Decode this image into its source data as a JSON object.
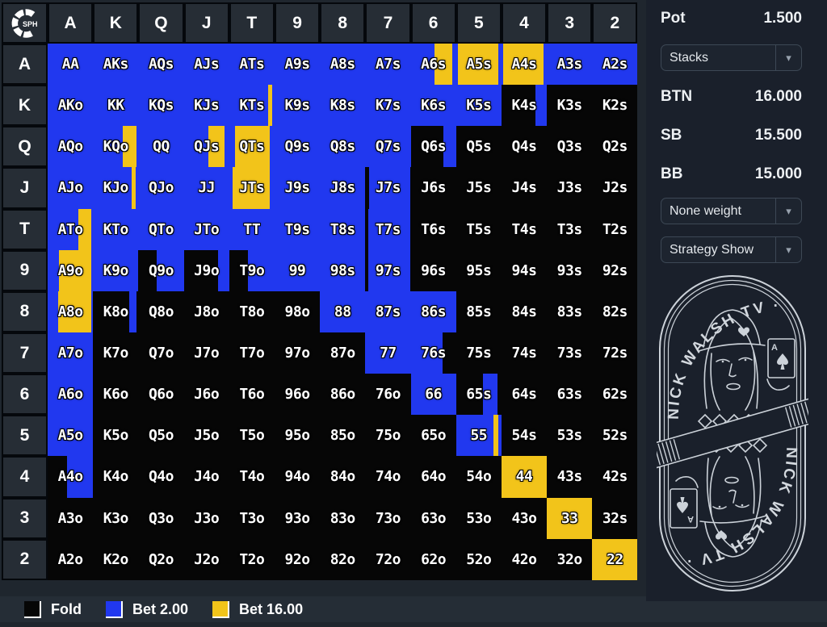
{
  "colors": {
    "B": "#2138ef",
    "Y": "#f2c41a",
    "K": "#060606"
  },
  "grid": {
    "corner_logo_text": "SPH",
    "col_headers": [
      "A",
      "K",
      "Q",
      "J",
      "T",
      "9",
      "8",
      "7",
      "6",
      "5",
      "4",
      "3",
      "2"
    ],
    "row_headers": [
      "A",
      "K",
      "Q",
      "J",
      "T",
      "9",
      "8",
      "7",
      "6",
      "5",
      "4",
      "3",
      "2"
    ],
    "rows": [
      [
        [
          "AA",
          "B"
        ],
        [
          "AKs",
          "B"
        ],
        [
          "AQs",
          "B"
        ],
        [
          "AJs",
          "B"
        ],
        [
          "ATs",
          "B"
        ],
        [
          "A9s",
          "B"
        ],
        [
          "A8s",
          "B"
        ],
        [
          "A7s",
          "B"
        ],
        [
          "A6s",
          [
            [
              "B",
              0.52
            ],
            [
              "Y",
              0.4
            ],
            [
              "B",
              0.08
            ]
          ]
        ],
        [
          "A5s",
          [
            [
              "B",
              0.05
            ],
            [
              "Y",
              0.89
            ],
            [
              "B",
              0.06
            ]
          ]
        ],
        [
          "A4s",
          [
            [
              "B",
              0.03
            ],
            [
              "Y",
              0.89
            ],
            [
              "B",
              0.08
            ]
          ]
        ],
        [
          "A3s",
          "B"
        ],
        [
          "A2s",
          "B"
        ]
      ],
      [
        [
          "AKo",
          "B"
        ],
        [
          "KK",
          "B"
        ],
        [
          "KQs",
          "B"
        ],
        [
          "KJs",
          "B"
        ],
        [
          "KTs",
          [
            [
              "B",
              0.86
            ],
            [
              "Y",
              0.09
            ],
            [
              "B",
              0.05
            ]
          ]
        ],
        [
          "K9s",
          "B"
        ],
        [
          "K8s",
          "B"
        ],
        [
          "K7s",
          "B"
        ],
        [
          "K6s",
          "B"
        ],
        [
          "K5s",
          "B"
        ],
        [
          "K4s",
          [
            [
              "K",
              0.75
            ],
            [
              "B",
              0.25
            ]
          ]
        ],
        [
          "K3s",
          "K"
        ],
        [
          "K2s",
          "K"
        ]
      ],
      [
        [
          "AQo",
          "B"
        ],
        [
          "KQo",
          [
            [
              "B",
              0.65
            ],
            [
              "Y",
              0.3
            ],
            [
              "B",
              0.05
            ]
          ]
        ],
        [
          "QQ",
          "B"
        ],
        [
          "QJs",
          [
            [
              "B",
              0.54
            ],
            [
              "Y",
              0.35
            ],
            [
              "B",
              0.11
            ]
          ]
        ],
        [
          "QTs",
          [
            [
              "B",
              0.13
            ],
            [
              "Y",
              0.77
            ],
            [
              "B",
              0.1
            ]
          ]
        ],
        [
          "Q9s",
          "B"
        ],
        [
          "Q8s",
          "B"
        ],
        [
          "Q7s",
          "B"
        ],
        [
          "Q6s",
          [
            [
              "K",
              0.72
            ],
            [
              "B",
              0.28
            ]
          ]
        ],
        [
          "Q5s",
          "K"
        ],
        [
          "Q4s",
          "K"
        ],
        [
          "Q3s",
          "K"
        ],
        [
          "Q2s",
          "K"
        ]
      ],
      [
        [
          "AJo",
          "B"
        ],
        [
          "KJo",
          [
            [
              "B",
              0.85
            ],
            [
              "Y",
              0.09
            ],
            [
              "B",
              0.06
            ]
          ]
        ],
        [
          "QJo",
          "B"
        ],
        [
          "JJ",
          "B"
        ],
        [
          "JTs",
          [
            [
              "B",
              0.08
            ],
            [
              "Y",
              0.82
            ],
            [
              "B",
              0.1
            ]
          ]
        ],
        [
          "J9s",
          "B"
        ],
        [
          "J8s",
          "B"
        ],
        [
          "J7s",
          [
            [
              "K",
              0.09
            ],
            [
              "B",
              0.91
            ]
          ]
        ],
        [
          "J6s",
          "K"
        ],
        [
          "J5s",
          "K"
        ],
        [
          "J4s",
          "K"
        ],
        [
          "J3s",
          "K"
        ],
        [
          "J2s",
          "K"
        ]
      ],
      [
        [
          "ATo",
          [
            [
              "B",
              0.67
            ],
            [
              "Y",
              0.29
            ],
            [
              "B",
              0.04
            ]
          ]
        ],
        [
          "KTo",
          "B"
        ],
        [
          "QTo",
          "B"
        ],
        [
          "JTo",
          "B"
        ],
        [
          "TT",
          "B"
        ],
        [
          "T9s",
          "B"
        ],
        [
          "T8s",
          "B"
        ],
        [
          "T7s",
          [
            [
              "K",
              0.06
            ],
            [
              "B",
              0.94
            ]
          ]
        ],
        [
          "T6s",
          "K"
        ],
        [
          "T5s",
          "K"
        ],
        [
          "T4s",
          "K"
        ],
        [
          "T3s",
          "K"
        ],
        [
          "T2s",
          "K"
        ]
      ],
      [
        [
          "A9o",
          [
            [
              "B",
              0.25
            ],
            [
              "Y",
              0.71
            ],
            [
              "B",
              0.04
            ]
          ]
        ],
        [
          "K9o",
          "B"
        ],
        [
          "Q9o",
          [
            [
              "K",
              0.4
            ],
            [
              "B",
              0.6
            ]
          ]
        ],
        [
          "J9o",
          [
            [
              "K",
              0.75
            ],
            [
              "B",
              0.25
            ]
          ]
        ],
        [
          "T9o",
          [
            [
              "K",
              0.41
            ],
            [
              "B",
              0.59
            ]
          ]
        ],
        [
          "99",
          "B"
        ],
        [
          "98s",
          "B"
        ],
        [
          "97s",
          [
            [
              "K",
              0.06
            ],
            [
              "B",
              0.94
            ]
          ]
        ],
        [
          "96s",
          "K"
        ],
        [
          "95s",
          "K"
        ],
        [
          "94s",
          "K"
        ],
        [
          "93s",
          "K"
        ],
        [
          "92s",
          "K"
        ]
      ],
      [
        [
          "A8o",
          [
            [
              "B",
              0.24
            ],
            [
              "Y",
              0.72
            ],
            [
              "B",
              0.04
            ]
          ]
        ],
        [
          "K8o",
          [
            [
              "K",
              0.8
            ],
            [
              "B",
              0.15
            ],
            [
              "K",
              0.05
            ]
          ]
        ],
        [
          "Q8o",
          "K"
        ],
        [
          "J8o",
          "K"
        ],
        [
          "T8o",
          "K"
        ],
        [
          "98o",
          "K"
        ],
        [
          "88",
          "B"
        ],
        [
          "87s",
          "B"
        ],
        [
          "86s",
          "B"
        ],
        [
          "85s",
          "K"
        ],
        [
          "84s",
          "K"
        ],
        [
          "83s",
          "K"
        ],
        [
          "82s",
          "K"
        ]
      ],
      [
        [
          "A7o",
          "B"
        ],
        [
          "K7o",
          "K"
        ],
        [
          "Q7o",
          "K"
        ],
        [
          "J7o",
          "K"
        ],
        [
          "T7o",
          "K"
        ],
        [
          "97o",
          "K"
        ],
        [
          "87o",
          "K"
        ],
        [
          "77",
          "B"
        ],
        [
          "76s",
          [
            [
              "B",
              0.7
            ],
            [
              "K",
              0.3
            ]
          ]
        ],
        [
          "75s",
          "K"
        ],
        [
          "74s",
          "K"
        ],
        [
          "73s",
          "K"
        ],
        [
          "72s",
          "K"
        ]
      ],
      [
        [
          "A6o",
          "B"
        ],
        [
          "K6o",
          "K"
        ],
        [
          "Q6o",
          "K"
        ],
        [
          "J6o",
          "K"
        ],
        [
          "T6o",
          "K"
        ],
        [
          "96o",
          "K"
        ],
        [
          "86o",
          "K"
        ],
        [
          "76o",
          "K"
        ],
        [
          "66",
          "B"
        ],
        [
          "65s",
          [
            [
              "K",
              0.6
            ],
            [
              "B",
              0.32
            ],
            [
              "K",
              0.08
            ]
          ]
        ],
        [
          "64s",
          "K"
        ],
        [
          "63s",
          "K"
        ],
        [
          "62s",
          "K"
        ]
      ],
      [
        [
          "A5o",
          "B"
        ],
        [
          "K5o",
          "K"
        ],
        [
          "Q5o",
          "K"
        ],
        [
          "J5o",
          "K"
        ],
        [
          "T5o",
          "K"
        ],
        [
          "95o",
          "K"
        ],
        [
          "85o",
          "K"
        ],
        [
          "75o",
          "K"
        ],
        [
          "65o",
          "K"
        ],
        [
          "55",
          [
            [
              "B",
              0.82
            ],
            [
              "Y",
              0.12
            ],
            [
              "B",
              0.06
            ]
          ]
        ],
        [
          "54s",
          "K"
        ],
        [
          "53s",
          "K"
        ],
        [
          "52s",
          "K"
        ]
      ],
      [
        [
          "A4o",
          [
            [
              "K",
              0.42
            ],
            [
              "B",
              0.58
            ]
          ]
        ],
        [
          "K4o",
          "K"
        ],
        [
          "Q4o",
          "K"
        ],
        [
          "J4o",
          "K"
        ],
        [
          "T4o",
          "K"
        ],
        [
          "94o",
          "K"
        ],
        [
          "84o",
          "K"
        ],
        [
          "74o",
          "K"
        ],
        [
          "64o",
          "K"
        ],
        [
          "54o",
          "K"
        ],
        [
          "44",
          "Y"
        ],
        [
          "43s",
          "K"
        ],
        [
          "42s",
          "K"
        ]
      ],
      [
        [
          "A3o",
          "K"
        ],
        [
          "K3o",
          "K"
        ],
        [
          "Q3o",
          "K"
        ],
        [
          "J3o",
          "K"
        ],
        [
          "T3o",
          "K"
        ],
        [
          "93o",
          "K"
        ],
        [
          "83o",
          "K"
        ],
        [
          "73o",
          "K"
        ],
        [
          "63o",
          "K"
        ],
        [
          "53o",
          "K"
        ],
        [
          "43o",
          "K"
        ],
        [
          "33",
          "Y"
        ],
        [
          "32s",
          "K"
        ]
      ],
      [
        [
          "A2o",
          "K"
        ],
        [
          "K2o",
          "K"
        ],
        [
          "Q2o",
          "K"
        ],
        [
          "J2o",
          "K"
        ],
        [
          "T2o",
          "K"
        ],
        [
          "92o",
          "K"
        ],
        [
          "82o",
          "K"
        ],
        [
          "72o",
          "K"
        ],
        [
          "62o",
          "K"
        ],
        [
          "52o",
          "K"
        ],
        [
          "42o",
          "K"
        ],
        [
          "32o",
          "K"
        ],
        [
          "22",
          "Y"
        ]
      ]
    ]
  },
  "legend": {
    "items": [
      {
        "label": "Fold",
        "color": "#060606"
      },
      {
        "label": "Bet 2.00",
        "color": "#2138ef"
      },
      {
        "label": "Bet 16.00",
        "color": "#f2c41a"
      }
    ]
  },
  "panel": {
    "pot_label": "Pot",
    "pot_value": "1.500",
    "stats": [
      {
        "label": "BTN",
        "value": "16.000"
      },
      {
        "label": "SB",
        "value": "15.500"
      },
      {
        "label": "BB",
        "value": "15.000"
      }
    ],
    "dropdowns": [
      {
        "label": "Stacks"
      },
      {
        "label": "None weight"
      },
      {
        "label": "Strategy Show"
      }
    ],
    "logo_text": "NICK WALSH TV ·"
  }
}
